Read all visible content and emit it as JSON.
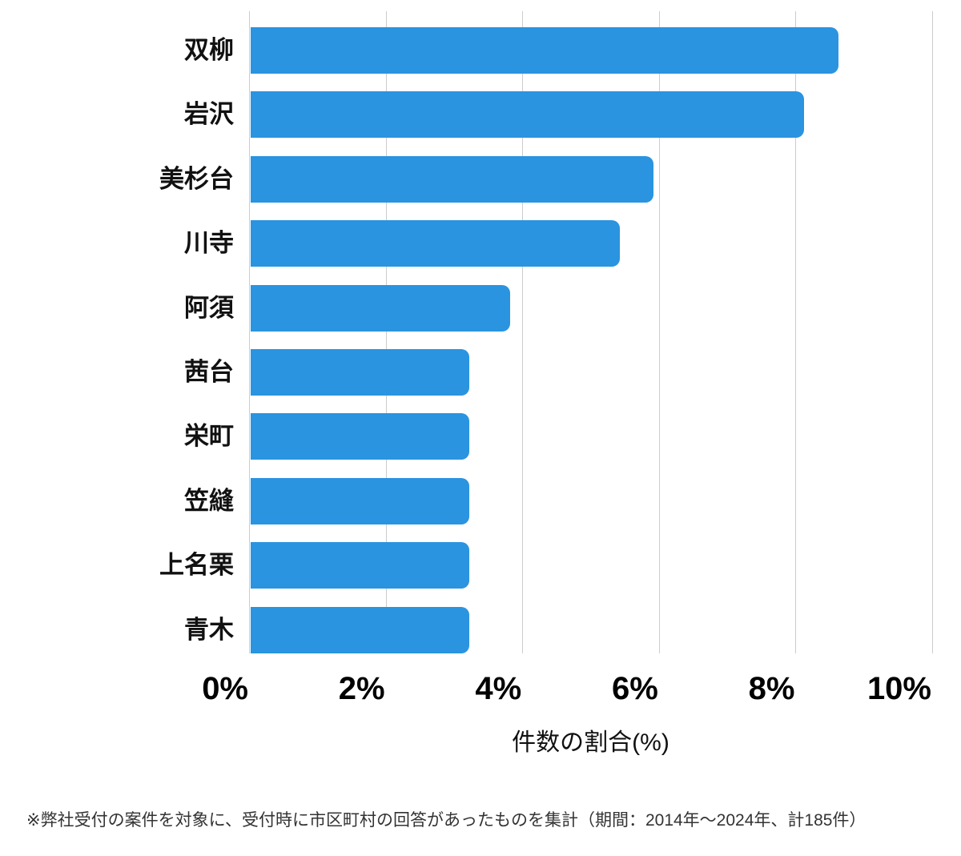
{
  "page": {
    "background_color": "#ffffff"
  },
  "chart_data": {
    "type": "bar",
    "orientation": "horizontal",
    "categories": [
      "双柳",
      "岩沢",
      "美杉台",
      "川寺",
      "阿須",
      "茜台",
      "栄町",
      "笠縫",
      "上名栗",
      "青木"
    ],
    "values": [
      8.6,
      8.1,
      5.9,
      5.4,
      3.8,
      3.2,
      3.2,
      3.2,
      3.2,
      3.2
    ],
    "title": "",
    "xlabel": "件数の割合(%)",
    "ylabel": "",
    "x_tick_labels": [
      "0%",
      "2%",
      "4%",
      "6%",
      "8%",
      "10%"
    ],
    "xlim": [
      0,
      10
    ],
    "grid": true,
    "legend": false,
    "bar_color": "#2A94E0",
    "gridline_color": "#cccccc",
    "tick_label_color": "#000000",
    "category_label_color": "#111111"
  },
  "footnote": "※弊社受付の案件を対象に、受付時に市区町村の回答があったものを集計（期間：2014年～2024年、計185件）"
}
